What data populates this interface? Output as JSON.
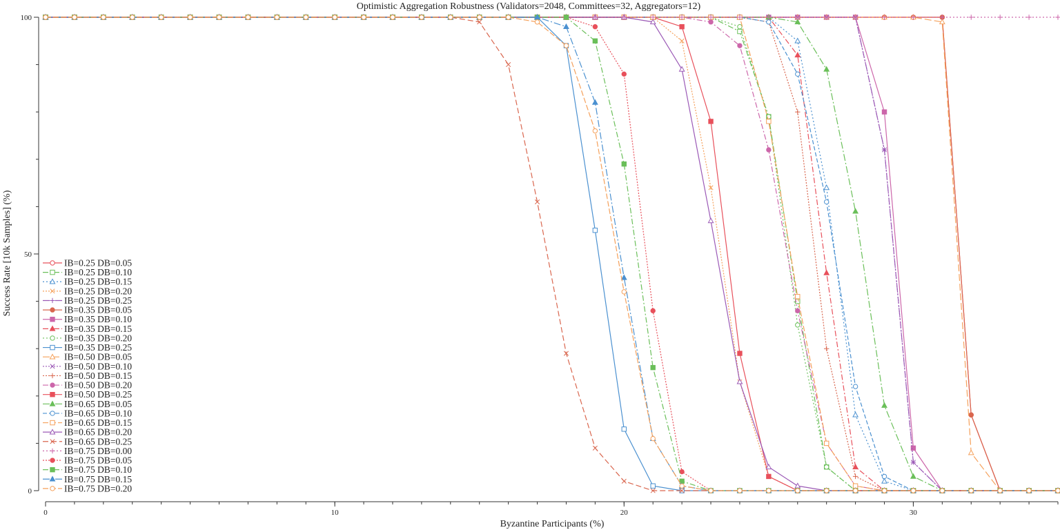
{
  "chart_data": {
    "type": "line",
    "title": "Optimistic Aggregation Robustness (Validators=2048, Committees=32, Aggregators=12)",
    "xlabel": "Byzantine Participants (%)",
    "ylabel": "Success Rate [10k Samples] (%)",
    "xlim": [
      0,
      35
    ],
    "ylim": [
      0,
      100
    ],
    "xticks": [
      0,
      10,
      20,
      30
    ],
    "yticks": [
      0,
      50,
      100
    ],
    "x_minor_step": 1,
    "y_minor_step": 10,
    "legend_position": "bottom-left",
    "x": [
      0,
      1,
      2,
      3,
      4,
      5,
      6,
      7,
      8,
      9,
      10,
      11,
      12,
      13,
      14,
      15,
      16,
      17,
      18,
      19,
      20,
      21,
      22,
      23,
      24,
      25,
      26,
      27,
      28,
      29,
      30,
      31,
      32,
      33,
      34,
      35
    ],
    "series": [
      {
        "name": "IB=0.25 DB=0.05",
        "color": "#e8505b",
        "dash": "",
        "marker": "circle-open",
        "values": [
          100,
          100,
          100,
          100,
          100,
          100,
          100,
          100,
          100,
          100,
          100,
          100,
          100,
          100,
          100,
          100,
          100,
          100,
          100,
          100,
          100,
          100,
          100,
          100,
          100,
          100,
          100,
          100,
          100,
          100,
          100,
          100,
          16,
          0,
          0,
          0
        ]
      },
      {
        "name": "IB=0.25 DB=0.10",
        "color": "#6abf59",
        "dash": "8,3,2,3",
        "marker": "square-open",
        "values": [
          100,
          100,
          100,
          100,
          100,
          100,
          100,
          100,
          100,
          100,
          100,
          100,
          100,
          100,
          100,
          100,
          100,
          100,
          100,
          100,
          100,
          100,
          100,
          100,
          97,
          79,
          40,
          5,
          0,
          0,
          0,
          0,
          0,
          0,
          0,
          0
        ]
      },
      {
        "name": "IB=0.25 DB=0.15",
        "color": "#4a90d0",
        "dash": "2,3",
        "marker": "triangle-open",
        "values": [
          100,
          100,
          100,
          100,
          100,
          100,
          100,
          100,
          100,
          100,
          100,
          100,
          100,
          100,
          100,
          100,
          100,
          100,
          100,
          100,
          100,
          100,
          100,
          100,
          100,
          100,
          95,
          64,
          16,
          2,
          0,
          0,
          0,
          0,
          0,
          0
        ]
      },
      {
        "name": "IB=0.25 DB=0.20",
        "color": "#f5a05a",
        "dash": "2,2",
        "marker": "x",
        "values": [
          100,
          100,
          100,
          100,
          100,
          100,
          100,
          100,
          100,
          100,
          100,
          100,
          100,
          100,
          100,
          100,
          100,
          100,
          100,
          100,
          100,
          100,
          95,
          64,
          23,
          3,
          0,
          0,
          0,
          0,
          0,
          0,
          0,
          0,
          0,
          0
        ]
      },
      {
        "name": "IB=0.25 DB=0.25",
        "color": "#9b59b6",
        "dash": "10,3,2,3",
        "marker": "plus",
        "values": [
          100,
          100,
          100,
          100,
          100,
          100,
          100,
          100,
          100,
          100,
          100,
          100,
          100,
          100,
          100,
          100,
          100,
          100,
          100,
          100,
          100,
          100,
          100,
          100,
          100,
          100,
          100,
          100,
          100,
          72,
          6,
          0,
          0,
          0,
          0,
          0
        ]
      },
      {
        "name": "IB=0.35 DB=0.05",
        "color": "#d9664e",
        "dash": "",
        "marker": "circle",
        "values": [
          100,
          100,
          100,
          100,
          100,
          100,
          100,
          100,
          100,
          100,
          100,
          100,
          100,
          100,
          100,
          100,
          100,
          100,
          100,
          100,
          100,
          100,
          100,
          100,
          100,
          100,
          100,
          100,
          100,
          100,
          100,
          100,
          16,
          0,
          0,
          0
        ]
      },
      {
        "name": "IB=0.35 DB=0.10",
        "color": "#cc66aa",
        "dash": "",
        "marker": "square",
        "values": [
          100,
          100,
          100,
          100,
          100,
          100,
          100,
          100,
          100,
          100,
          100,
          100,
          100,
          100,
          100,
          100,
          100,
          100,
          100,
          100,
          100,
          100,
          100,
          100,
          100,
          100,
          100,
          100,
          100,
          80,
          9,
          0,
          0,
          0,
          0,
          0
        ]
      },
      {
        "name": "IB=0.35 DB=0.15",
        "color": "#e8505b",
        "dash": "8,3,2,3",
        "marker": "triangle",
        "values": [
          100,
          100,
          100,
          100,
          100,
          100,
          100,
          100,
          100,
          100,
          100,
          100,
          100,
          100,
          100,
          100,
          100,
          100,
          100,
          100,
          100,
          100,
          100,
          100,
          100,
          100,
          92,
          46,
          5,
          0,
          0,
          0,
          0,
          0,
          0,
          0
        ]
      },
      {
        "name": "IB=0.35 DB=0.20",
        "color": "#6abf59",
        "dash": "2,3",
        "marker": "circle-open",
        "values": [
          100,
          100,
          100,
          100,
          100,
          100,
          100,
          100,
          100,
          100,
          100,
          100,
          100,
          100,
          100,
          100,
          100,
          100,
          100,
          100,
          100,
          100,
          100,
          100,
          98,
          79,
          35,
          5,
          0,
          0,
          0,
          0,
          0,
          0,
          0,
          0
        ]
      },
      {
        "name": "IB=0.35 DB=0.25",
        "color": "#4a90d0",
        "dash": "",
        "marker": "square-open",
        "values": [
          100,
          100,
          100,
          100,
          100,
          100,
          100,
          100,
          100,
          100,
          100,
          100,
          100,
          100,
          100,
          100,
          100,
          100,
          94,
          55,
          13,
          1,
          0,
          0,
          0,
          0,
          0,
          0,
          0,
          0,
          0,
          0,
          0,
          0,
          0,
          0
        ]
      },
      {
        "name": "IB=0.50 DB=0.05",
        "color": "#f5a05a",
        "dash": "10,4",
        "marker": "triangle-open",
        "values": [
          100,
          100,
          100,
          100,
          100,
          100,
          100,
          100,
          100,
          100,
          100,
          100,
          100,
          100,
          100,
          100,
          100,
          100,
          100,
          100,
          100,
          100,
          100,
          100,
          100,
          100,
          100,
          100,
          100,
          100,
          100,
          99,
          8,
          0,
          0,
          0
        ]
      },
      {
        "name": "IB=0.50 DB=0.10",
        "color": "#9b59b6",
        "dash": "2,2",
        "marker": "x",
        "values": [
          100,
          100,
          100,
          100,
          100,
          100,
          100,
          100,
          100,
          100,
          100,
          100,
          100,
          100,
          100,
          100,
          100,
          100,
          100,
          100,
          100,
          100,
          100,
          100,
          100,
          100,
          100,
          100,
          100,
          72,
          6,
          0,
          0,
          0,
          0,
          0
        ]
      },
      {
        "name": "IB=0.50 DB=0.15",
        "color": "#d9664e",
        "dash": "2,2",
        "marker": "plus",
        "values": [
          100,
          100,
          100,
          100,
          100,
          100,
          100,
          100,
          100,
          100,
          100,
          100,
          100,
          100,
          100,
          100,
          100,
          100,
          100,
          100,
          100,
          100,
          100,
          100,
          100,
          99,
          80,
          30,
          3,
          0,
          0,
          0,
          0,
          0,
          0,
          0
        ]
      },
      {
        "name": "IB=0.50 DB=0.20",
        "color": "#cc66aa",
        "dash": "8,3,2,3",
        "marker": "circle",
        "values": [
          100,
          100,
          100,
          100,
          100,
          100,
          100,
          100,
          100,
          100,
          100,
          100,
          100,
          100,
          100,
          100,
          100,
          100,
          100,
          100,
          100,
          100,
          100,
          99,
          94,
          72,
          38,
          10,
          1,
          0,
          0,
          0,
          0,
          0,
          0,
          0
        ]
      },
      {
        "name": "IB=0.50 DB=0.25",
        "color": "#e8505b",
        "dash": "",
        "marker": "square",
        "values": [
          100,
          100,
          100,
          100,
          100,
          100,
          100,
          100,
          100,
          100,
          100,
          100,
          100,
          100,
          100,
          100,
          100,
          100,
          100,
          100,
          100,
          100,
          98,
          78,
          29,
          3,
          0,
          0,
          0,
          0,
          0,
          0,
          0,
          0,
          0,
          0
        ]
      },
      {
        "name": "IB=0.65 DB=0.05",
        "color": "#6abf59",
        "dash": "10,3,2,3",
        "marker": "triangle",
        "values": [
          100,
          100,
          100,
          100,
          100,
          100,
          100,
          100,
          100,
          100,
          100,
          100,
          100,
          100,
          100,
          100,
          100,
          100,
          100,
          100,
          100,
          100,
          100,
          100,
          100,
          100,
          99,
          89,
          59,
          18,
          3,
          0,
          0,
          0,
          0,
          0
        ]
      },
      {
        "name": "IB=0.65 DB=0.10",
        "color": "#4a90d0",
        "dash": "6,3",
        "marker": "circle-open",
        "values": [
          100,
          100,
          100,
          100,
          100,
          100,
          100,
          100,
          100,
          100,
          100,
          100,
          100,
          100,
          100,
          100,
          100,
          100,
          100,
          100,
          100,
          100,
          100,
          100,
          100,
          99,
          88,
          61,
          22,
          3,
          0,
          0,
          0,
          0,
          0,
          0
        ]
      },
      {
        "name": "IB=0.65 DB=0.15",
        "color": "#f5a05a",
        "dash": "8,3",
        "marker": "square-open",
        "values": [
          100,
          100,
          100,
          100,
          100,
          100,
          100,
          100,
          100,
          100,
          100,
          100,
          100,
          100,
          100,
          100,
          100,
          100,
          100,
          100,
          100,
          100,
          100,
          100,
          100,
          78,
          41,
          10,
          1,
          0,
          0,
          0,
          0,
          0,
          0,
          0
        ]
      },
      {
        "name": "IB=0.65 DB=0.20",
        "color": "#9b59b6",
        "dash": "",
        "marker": "triangle-open",
        "values": [
          100,
          100,
          100,
          100,
          100,
          100,
          100,
          100,
          100,
          100,
          100,
          100,
          100,
          100,
          100,
          100,
          100,
          100,
          100,
          100,
          100,
          99,
          89,
          57,
          23,
          5,
          1,
          0,
          0,
          0,
          0,
          0,
          0,
          0,
          0,
          0
        ]
      },
      {
        "name": "IB=0.65 DB=0.25",
        "color": "#d9664e",
        "dash": "8,4",
        "marker": "x",
        "values": [
          100,
          100,
          100,
          100,
          100,
          100,
          100,
          100,
          100,
          100,
          100,
          100,
          100,
          100,
          100,
          99,
          90,
          61,
          29,
          9,
          2,
          0,
          0,
          0,
          0,
          0,
          0,
          0,
          0,
          0,
          0,
          0,
          0,
          0,
          0,
          0
        ]
      },
      {
        "name": "IB=0.75 DB=0.00",
        "color": "#cc66aa",
        "dash": "2,3",
        "marker": "plus",
        "values": [
          100,
          100,
          100,
          100,
          100,
          100,
          100,
          100,
          100,
          100,
          100,
          100,
          100,
          100,
          100,
          100,
          100,
          100,
          100,
          100,
          100,
          100,
          100,
          100,
          100,
          100,
          100,
          100,
          100,
          100,
          100,
          100,
          100,
          100,
          100,
          100
        ]
      },
      {
        "name": "IB=0.75 DB=0.05",
        "color": "#e8505b",
        "dash": "2,2",
        "marker": "circle",
        "values": [
          100,
          100,
          100,
          100,
          100,
          100,
          100,
          100,
          100,
          100,
          100,
          100,
          100,
          100,
          100,
          100,
          100,
          100,
          100,
          98,
          88,
          38,
          4,
          0,
          0,
          0,
          0,
          0,
          0,
          0,
          0,
          0,
          0,
          0,
          0,
          0
        ]
      },
      {
        "name": "IB=0.75 DB=0.10",
        "color": "#6abf59",
        "dash": "8,3,2,3",
        "marker": "square",
        "values": [
          100,
          100,
          100,
          100,
          100,
          100,
          100,
          100,
          100,
          100,
          100,
          100,
          100,
          100,
          100,
          100,
          100,
          100,
          100,
          95,
          69,
          26,
          2,
          0,
          0,
          0,
          0,
          0,
          0,
          0,
          0,
          0,
          0,
          0,
          0,
          0
        ]
      },
      {
        "name": "IB=0.75 DB=0.15",
        "color": "#4a90d0",
        "dash": "10,3,2,3",
        "marker": "triangle",
        "values": [
          100,
          100,
          100,
          100,
          100,
          100,
          100,
          100,
          100,
          100,
          100,
          100,
          100,
          100,
          100,
          100,
          100,
          100,
          98,
          82,
          45,
          11,
          1,
          0,
          0,
          0,
          0,
          0,
          0,
          0,
          0,
          0,
          0,
          0,
          0,
          0
        ]
      },
      {
        "name": "IB=0.75 DB=0.20",
        "color": "#f5a05a",
        "dash": "8,3",
        "marker": "circle-open",
        "values": [
          100,
          100,
          100,
          100,
          100,
          100,
          100,
          100,
          100,
          100,
          100,
          100,
          100,
          100,
          100,
          100,
          100,
          99,
          94,
          76,
          42,
          11,
          1,
          0,
          0,
          0,
          0,
          0,
          0,
          0,
          0,
          0,
          0,
          0,
          0,
          0
        ]
      }
    ]
  }
}
